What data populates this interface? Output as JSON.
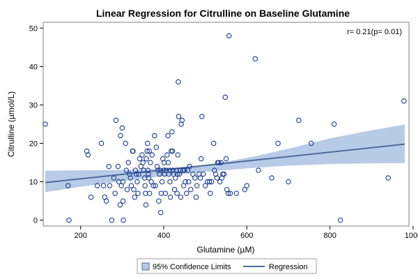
{
  "chart_data": {
    "type": "scatter",
    "title": "Linear Regression for Citrulline on Baseline Glutamine",
    "xlabel": "Glutamine (µM)",
    "ylabel": "Citrulline (µmol/L)",
    "xlim": [
      110,
      990
    ],
    "ylim": [
      -1.5,
      51.5
    ],
    "xticks": [
      200,
      400,
      600,
      800,
      1000
    ],
    "yticks": [
      0,
      10,
      20,
      30,
      40,
      50
    ],
    "annotation": "r= 0.21(p= 0.01)",
    "legend": {
      "placement": "bottom-center",
      "entries": [
        "95% Confidence Limits",
        "Regression"
      ]
    },
    "colors": {
      "points": "#1a3d8f",
      "band": "#b8cbe6",
      "regression": "#4f6b9a",
      "frame": "#808080"
    },
    "regression": {
      "x": [
        115,
        980
      ],
      "y": [
        9.8,
        19.8
      ]
    },
    "confidence_band": {
      "x": [
        115,
        200,
        300,
        400,
        500,
        600,
        700,
        800,
        900,
        980
      ],
      "lower": [
        7.3,
        8.7,
        10.2,
        11.5,
        12.6,
        13.5,
        14.2,
        14.6,
        14.8,
        14.9
      ],
      "upper": [
        12.9,
        13.0,
        13.1,
        13.4,
        14.3,
        16.2,
        18.6,
        21.3,
        23.4,
        24.9
      ]
    },
    "points": [
      {
        "x": 115,
        "y": 25
      },
      {
        "x": 170,
        "y": 9
      },
      {
        "x": 172,
        "y": 0
      },
      {
        "x": 215,
        "y": 18
      },
      {
        "x": 218,
        "y": 17
      },
      {
        "x": 225,
        "y": 6
      },
      {
        "x": 240,
        "y": 9
      },
      {
        "x": 250,
        "y": 20
      },
      {
        "x": 255,
        "y": 9
      },
      {
        "x": 258,
        "y": 6
      },
      {
        "x": 262,
        "y": 5
      },
      {
        "x": 268,
        "y": 14
      },
      {
        "x": 270,
        "y": 9
      },
      {
        "x": 275,
        "y": 0
      },
      {
        "x": 280,
        "y": 11
      },
      {
        "x": 283,
        "y": 7
      },
      {
        "x": 285,
        "y": 26
      },
      {
        "x": 290,
        "y": 14
      },
      {
        "x": 292,
        "y": 10
      },
      {
        "x": 295,
        "y": 4
      },
      {
        "x": 296,
        "y": 22
      },
      {
        "x": 298,
        "y": 9
      },
      {
        "x": 300,
        "y": 24
      },
      {
        "x": 302,
        "y": 10
      },
      {
        "x": 302,
        "y": 5
      },
      {
        "x": 303,
        "y": 0
      },
      {
        "x": 308,
        "y": 20
      },
      {
        "x": 310,
        "y": 13
      },
      {
        "x": 312,
        "y": 8
      },
      {
        "x": 315,
        "y": 15
      },
      {
        "x": 318,
        "y": 12
      },
      {
        "x": 320,
        "y": 11
      },
      {
        "x": 322,
        "y": 9
      },
      {
        "x": 325,
        "y": 18
      },
      {
        "x": 326,
        "y": 18
      },
      {
        "x": 328,
        "y": 8
      },
      {
        "x": 330,
        "y": 6
      },
      {
        "x": 332,
        "y": 13
      },
      {
        "x": 334,
        "y": 12
      },
      {
        "x": 336,
        "y": 10
      },
      {
        "x": 338,
        "y": 7
      },
      {
        "x": 340,
        "y": 12
      },
      {
        "x": 342,
        "y": 16
      },
      {
        "x": 345,
        "y": 14
      },
      {
        "x": 348,
        "y": 17
      },
      {
        "x": 350,
        "y": 15
      },
      {
        "x": 352,
        "y": 13
      },
      {
        "x": 354,
        "y": 11
      },
      {
        "x": 355,
        "y": 9
      },
      {
        "x": 356,
        "y": 7
      },
      {
        "x": 357,
        "y": 4
      },
      {
        "x": 358,
        "y": 16
      },
      {
        "x": 360,
        "y": 18
      },
      {
        "x": 361,
        "y": 20
      },
      {
        "x": 362,
        "y": 13
      },
      {
        "x": 363,
        "y": 12
      },
      {
        "x": 364,
        "y": 11
      },
      {
        "x": 365,
        "y": 18
      },
      {
        "x": 366,
        "y": 7
      },
      {
        "x": 368,
        "y": 15
      },
      {
        "x": 370,
        "y": 10
      },
      {
        "x": 372,
        "y": 17
      },
      {
        "x": 375,
        "y": 9
      },
      {
        "x": 378,
        "y": 22
      },
      {
        "x": 380,
        "y": 9
      },
      {
        "x": 382,
        "y": 19
      },
      {
        "x": 384,
        "y": 14
      },
      {
        "x": 386,
        "y": 13
      },
      {
        "x": 388,
        "y": 5
      },
      {
        "x": 390,
        "y": 12
      },
      {
        "x": 392,
        "y": 13
      },
      {
        "x": 393,
        "y": 2
      },
      {
        "x": 394,
        "y": 7
      },
      {
        "x": 396,
        "y": 10
      },
      {
        "x": 398,
        "y": 16
      },
      {
        "x": 400,
        "y": 13
      },
      {
        "x": 401,
        "y": 15
      },
      {
        "x": 402,
        "y": 12
      },
      {
        "x": 404,
        "y": 7
      },
      {
        "x": 406,
        "y": 13
      },
      {
        "x": 408,
        "y": 17
      },
      {
        "x": 410,
        "y": 22
      },
      {
        "x": 411,
        "y": 15
      },
      {
        "x": 412,
        "y": 12
      },
      {
        "x": 414,
        "y": 13
      },
      {
        "x": 415,
        "y": 10
      },
      {
        "x": 416,
        "y": 6
      },
      {
        "x": 418,
        "y": 18
      },
      {
        "x": 420,
        "y": 23
      },
      {
        "x": 421,
        "y": 18
      },
      {
        "x": 422,
        "y": 13
      },
      {
        "x": 424,
        "y": 12
      },
      {
        "x": 426,
        "y": 8
      },
      {
        "x": 428,
        "y": 11
      },
      {
        "x": 430,
        "y": 13
      },
      {
        "x": 432,
        "y": 7
      },
      {
        "x": 433,
        "y": 12
      },
      {
        "x": 434,
        "y": 17
      },
      {
        "x": 435,
        "y": 36
      },
      {
        "x": 436,
        "y": 27
      },
      {
        "x": 438,
        "y": 12
      },
      {
        "x": 440,
        "y": 13
      },
      {
        "x": 441,
        "y": 6
      },
      {
        "x": 442,
        "y": 25
      },
      {
        "x": 444,
        "y": 26
      },
      {
        "x": 446,
        "y": 13
      },
      {
        "x": 448,
        "y": 9
      },
      {
        "x": 450,
        "y": 13
      },
      {
        "x": 452,
        "y": 10
      },
      {
        "x": 455,
        "y": 7
      },
      {
        "x": 458,
        "y": 13
      },
      {
        "x": 460,
        "y": 10
      },
      {
        "x": 462,
        "y": 14
      },
      {
        "x": 465,
        "y": 8
      },
      {
        "x": 470,
        "y": 12
      },
      {
        "x": 475,
        "y": 11
      },
      {
        "x": 478,
        "y": 6
      },
      {
        "x": 480,
        "y": 9
      },
      {
        "x": 485,
        "y": 12
      },
      {
        "x": 488,
        "y": 11
      },
      {
        "x": 490,
        "y": 16
      },
      {
        "x": 492,
        "y": 27
      },
      {
        "x": 495,
        "y": 12
      },
      {
        "x": 500,
        "y": 9
      },
      {
        "x": 505,
        "y": 10
      },
      {
        "x": 510,
        "y": 10
      },
      {
        "x": 512,
        "y": 7
      },
      {
        "x": 515,
        "y": 10
      },
      {
        "x": 520,
        "y": 20
      },
      {
        "x": 522,
        "y": 13
      },
      {
        "x": 525,
        "y": 12
      },
      {
        "x": 528,
        "y": 11
      },
      {
        "x": 530,
        "y": 15
      },
      {
        "x": 532,
        "y": 15
      },
      {
        "x": 535,
        "y": 10
      },
      {
        "x": 538,
        "y": 15
      },
      {
        "x": 540,
        "y": 11
      },
      {
        "x": 542,
        "y": 12
      },
      {
        "x": 545,
        "y": 12
      },
      {
        "x": 548,
        "y": 32
      },
      {
        "x": 550,
        "y": 16
      },
      {
        "x": 552,
        "y": 8
      },
      {
        "x": 555,
        "y": 7
      },
      {
        "x": 557,
        "y": 48
      },
      {
        "x": 560,
        "y": 7
      },
      {
        "x": 575,
        "y": 7
      },
      {
        "x": 595,
        "y": 8
      },
      {
        "x": 600,
        "y": 9
      },
      {
        "x": 620,
        "y": 42
      },
      {
        "x": 628,
        "y": 13
      },
      {
        "x": 660,
        "y": 11
      },
      {
        "x": 675,
        "y": 20
      },
      {
        "x": 700,
        "y": 10
      },
      {
        "x": 725,
        "y": 26
      },
      {
        "x": 755,
        "y": 20
      },
      {
        "x": 810,
        "y": 25
      },
      {
        "x": 825,
        "y": 0
      },
      {
        "x": 940,
        "y": 11
      },
      {
        "x": 978,
        "y": 31
      }
    ]
  }
}
